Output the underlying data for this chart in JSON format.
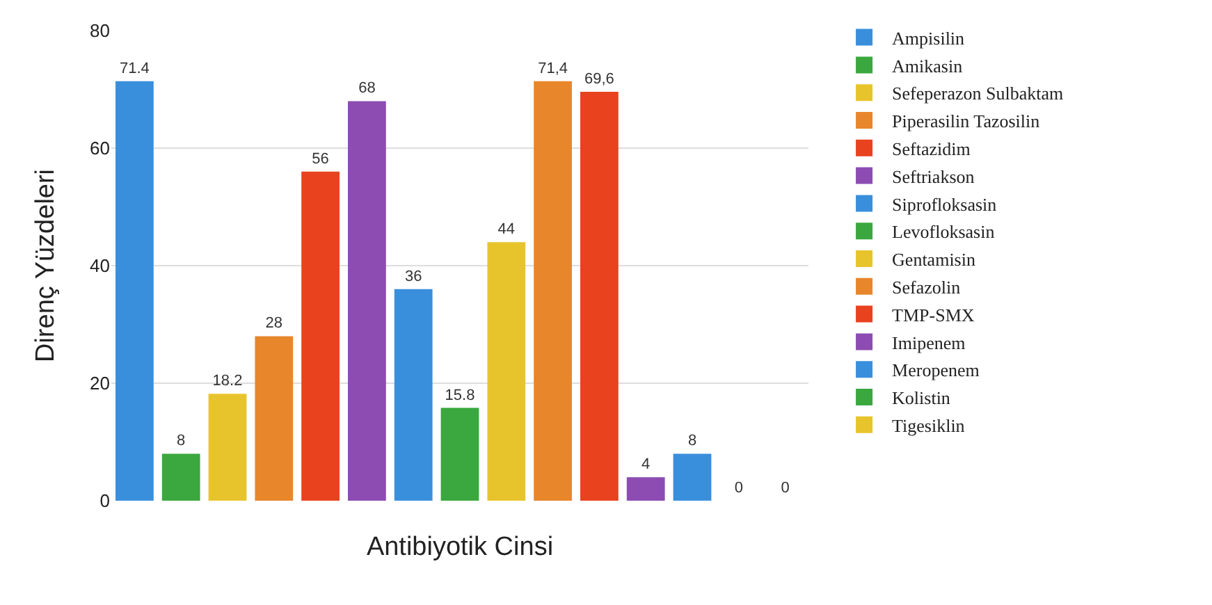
{
  "chart_data": {
    "type": "bar",
    "xlabel": "Antibiyotik Cinsi",
    "ylabel": "Direnç Yüzdeleri",
    "categories": [
      null,
      null,
      null,
      null,
      null,
      null,
      null,
      null,
      null,
      null,
      null,
      null,
      null,
      null,
      null
    ],
    "ylim": [
      0,
      80
    ],
    "yticks": [
      0,
      20,
      40,
      60,
      80
    ],
    "grid": "y",
    "legend": "right",
    "series": [
      {
        "name": "Ampisilin",
        "color": "#3a8fdc",
        "values": [
          71.4,
          null,
          null,
          null,
          null,
          null,
          null,
          null,
          null,
          null,
          null,
          null,
          null,
          null,
          null
        ],
        "value_labels": [
          "71.4",
          null,
          null,
          null,
          null,
          null,
          null,
          null,
          null,
          null,
          null,
          null,
          null,
          null,
          null
        ]
      },
      {
        "name": "Amikasin",
        "color": "#3aa83e",
        "values": [
          null,
          8,
          null,
          null,
          null,
          null,
          null,
          null,
          null,
          null,
          null,
          null,
          null,
          null,
          null
        ],
        "value_labels": [
          null,
          "8",
          null,
          null,
          null,
          null,
          null,
          null,
          null,
          null,
          null,
          null,
          null,
          null,
          null
        ]
      },
      {
        "name": "Sefeperazon Sulbaktam",
        "color": "#e8c42c",
        "values": [
          null,
          null,
          18.2,
          null,
          null,
          null,
          null,
          null,
          null,
          null,
          null,
          null,
          null,
          null,
          null
        ],
        "value_labels": [
          null,
          null,
          "18.2",
          null,
          null,
          null,
          null,
          null,
          null,
          null,
          null,
          null,
          null,
          null,
          null
        ]
      },
      {
        "name": "Piperasilin Tazosilin",
        "color": "#e8862c",
        "values": [
          null,
          null,
          null,
          28,
          null,
          null,
          null,
          null,
          null,
          null,
          null,
          null,
          null,
          null,
          null
        ],
        "value_labels": [
          null,
          null,
          null,
          "28",
          null,
          null,
          null,
          null,
          null,
          null,
          null,
          null,
          null,
          null,
          null
        ]
      },
      {
        "name": "Seftazidim",
        "color": "#e8421f",
        "values": [
          null,
          null,
          null,
          null,
          56,
          null,
          null,
          null,
          null,
          null,
          null,
          null,
          null,
          null,
          null
        ],
        "value_labels": [
          null,
          null,
          null,
          null,
          "56",
          null,
          null,
          null,
          null,
          null,
          null,
          null,
          null,
          null,
          null
        ]
      },
      {
        "name": "Seftriakson",
        "color": "#8c4cb2",
        "values": [
          null,
          null,
          null,
          null,
          null,
          68,
          null,
          null,
          null,
          null,
          null,
          null,
          null,
          null,
          null
        ],
        "value_labels": [
          null,
          null,
          null,
          null,
          null,
          "68",
          null,
          null,
          null,
          null,
          null,
          null,
          null,
          null,
          null
        ]
      },
      {
        "name": "Siprofloksasin",
        "color": "#3a8fdc",
        "values": [
          null,
          null,
          null,
          null,
          null,
          null,
          36,
          null,
          null,
          null,
          null,
          null,
          null,
          null,
          null
        ],
        "value_labels": [
          null,
          null,
          null,
          null,
          null,
          null,
          "36",
          null,
          null,
          null,
          null,
          null,
          null,
          null,
          null
        ]
      },
      {
        "name": "Levofloksasin",
        "color": "#3aa83e",
        "values": [
          null,
          null,
          null,
          null,
          null,
          null,
          null,
          15.8,
          null,
          null,
          null,
          null,
          null,
          null,
          null
        ],
        "value_labels": [
          null,
          null,
          null,
          null,
          null,
          null,
          null,
          "15.8",
          null,
          null,
          null,
          null,
          null,
          null,
          null
        ]
      },
      {
        "name": "Gentamisin",
        "color": "#e8c42c",
        "values": [
          null,
          null,
          null,
          null,
          null,
          null,
          null,
          null,
          44,
          null,
          null,
          null,
          null,
          null,
          null
        ],
        "value_labels": [
          null,
          null,
          null,
          null,
          null,
          null,
          null,
          null,
          "44",
          null,
          null,
          null,
          null,
          null,
          null
        ]
      },
      {
        "name": "Sefazolin",
        "color": "#e8862c",
        "values": [
          null,
          null,
          null,
          null,
          null,
          null,
          null,
          null,
          null,
          71.4,
          null,
          null,
          null,
          null,
          null
        ],
        "value_labels": [
          null,
          null,
          null,
          null,
          null,
          null,
          null,
          null,
          null,
          "71,4",
          null,
          null,
          null,
          null,
          null
        ]
      },
      {
        "name": "TMP-SMX",
        "color": "#e8421f",
        "values": [
          null,
          null,
          null,
          null,
          null,
          null,
          null,
          null,
          null,
          null,
          69.6,
          null,
          null,
          null,
          null
        ],
        "value_labels": [
          null,
          null,
          null,
          null,
          null,
          null,
          null,
          null,
          null,
          null,
          "69,6",
          null,
          null,
          null,
          null
        ]
      },
      {
        "name": "Imipenem",
        "color": "#8c4cb2",
        "values": [
          null,
          null,
          null,
          null,
          null,
          null,
          null,
          null,
          null,
          null,
          null,
          4,
          null,
          null,
          null
        ],
        "value_labels": [
          null,
          null,
          null,
          null,
          null,
          null,
          null,
          null,
          null,
          null,
          null,
          "4",
          null,
          null,
          null
        ]
      },
      {
        "name": "Meropenem",
        "color": "#3a8fdc",
        "values": [
          null,
          null,
          null,
          null,
          null,
          null,
          null,
          null,
          null,
          null,
          null,
          null,
          8,
          null,
          null
        ],
        "value_labels": [
          null,
          null,
          null,
          null,
          null,
          null,
          null,
          null,
          null,
          null,
          null,
          null,
          "8",
          null,
          null
        ]
      },
      {
        "name": "Kolistin",
        "color": "#3aa83e",
        "values": [
          null,
          null,
          null,
          null,
          null,
          null,
          null,
          null,
          null,
          null,
          null,
          null,
          null,
          0,
          null
        ],
        "value_labels": [
          null,
          null,
          null,
          null,
          null,
          null,
          null,
          null,
          null,
          null,
          null,
          null,
          null,
          "0",
          null
        ]
      },
      {
        "name": "Tigesiklin",
        "color": "#e8c42c",
        "values": [
          null,
          null,
          null,
          null,
          null,
          null,
          null,
          null,
          null,
          null,
          null,
          null,
          null,
          null,
          0
        ],
        "value_labels": [
          null,
          null,
          null,
          null,
          null,
          null,
          null,
          null,
          null,
          null,
          null,
          null,
          null,
          null,
          "0"
        ]
      }
    ]
  }
}
